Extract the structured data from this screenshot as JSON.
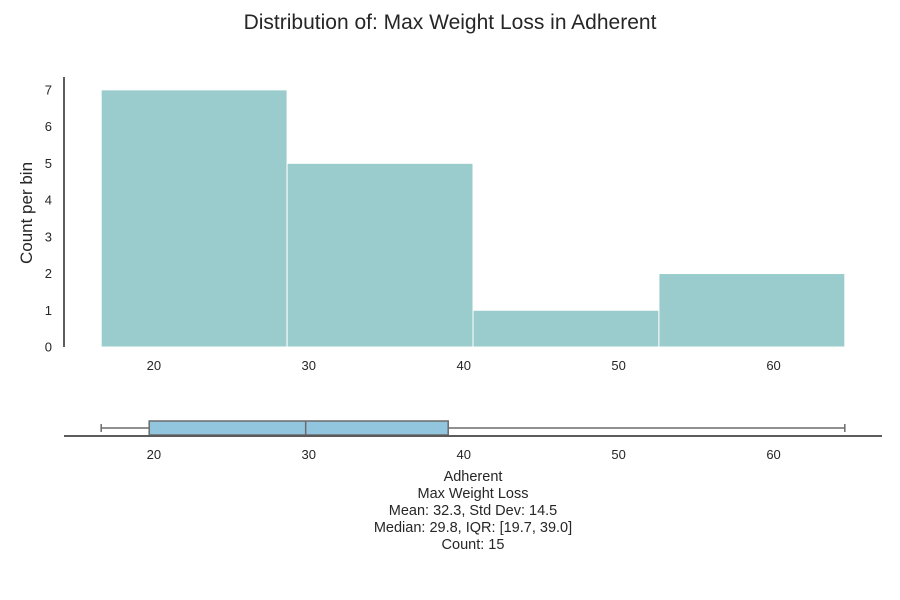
{
  "chart_data": [
    {
      "type": "bar",
      "subtype": "histogram",
      "title": "Distribution of: Max Weight Loss in Adherent",
      "xlabel": "",
      "ylabel": "Count per bin",
      "bins": [
        {
          "start": 16.6,
          "end": 28.6,
          "count": 7
        },
        {
          "start": 28.6,
          "end": 40.6,
          "count": 5
        },
        {
          "start": 40.6,
          "end": 52.6,
          "count": 1
        },
        {
          "start": 52.6,
          "end": 64.6,
          "count": 2
        }
      ],
      "xlim": [
        14.2,
        67.0
      ],
      "ylim": [
        0,
        7.35
      ],
      "x_ticks": [
        20,
        30,
        40,
        50,
        60
      ],
      "y_ticks": [
        0,
        1,
        2,
        3,
        4,
        5,
        6,
        7
      ],
      "bar_color": "#9acccd",
      "grid": false
    },
    {
      "type": "boxplot",
      "orientation": "horizontal",
      "whisker_low": 16.6,
      "q1": 19.7,
      "median": 29.8,
      "q3": 39.0,
      "whisker_high": 64.6,
      "xlim": [
        14.2,
        67.0
      ],
      "x_ticks": [
        20,
        30,
        40,
        50,
        60
      ],
      "box_color": "#92c5de",
      "stats_text": [
        "Adherent",
        "Max Weight Loss",
        "Mean: 32.3, Std Dev: 14.5",
        "Median: 29.8, IQR: [19.7, 39.0]",
        "Count: 15"
      ]
    }
  ]
}
